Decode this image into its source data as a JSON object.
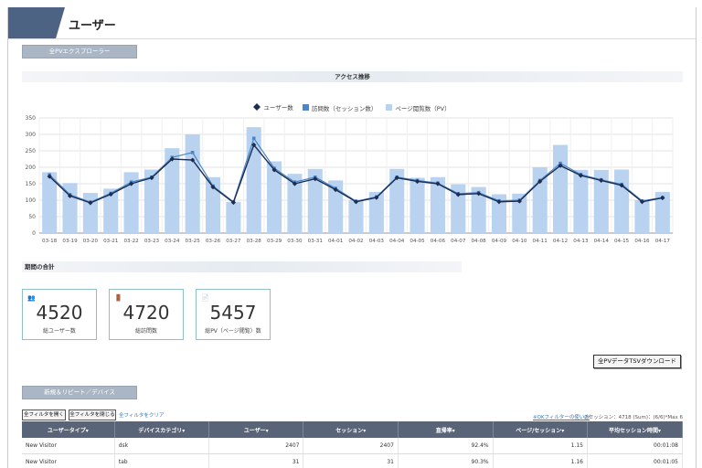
{
  "header": {
    "title": "ユーザー"
  },
  "explorer_label": "全PVエクスプローラー",
  "chart_title": "アクセス推移",
  "chart_data": {
    "type": "bar",
    "categories": [
      "03-18",
      "03-19",
      "03-20",
      "03-21",
      "03-22",
      "03-23",
      "03-24",
      "03-25",
      "03-26",
      "03-27",
      "03-28",
      "03-29",
      "03-30",
      "03-31",
      "04-01",
      "04-02",
      "04-03",
      "04-04",
      "04-05",
      "04-06",
      "04-07",
      "04-08",
      "04-09",
      "04-10",
      "04-11",
      "04-12",
      "04-13",
      "04-14",
      "04-15",
      "04-16",
      "04-17"
    ],
    "ylim": [
      0,
      350
    ],
    "yticks": [
      0,
      50,
      100,
      150,
      200,
      250,
      300,
      350
    ],
    "grid": true,
    "legend_position": "top-center",
    "series": [
      {
        "name": "ユーザー数",
        "type": "line",
        "color": "#1d2d50",
        "values": [
          172,
          113,
          92,
          118,
          150,
          168,
          225,
          222,
          140,
          93,
          268,
          192,
          150,
          165,
          132,
          95,
          108,
          168,
          157,
          150,
          117,
          120,
          95,
          97,
          157,
          205,
          175,
          160,
          145,
          95,
          107
        ]
      },
      {
        "name": "訪問数（セッション数）",
        "type": "line",
        "color": "#4a86c8",
        "values": [
          177,
          117,
          94,
          121,
          155,
          170,
          230,
          245,
          143,
          95,
          288,
          197,
          155,
          170,
          136,
          97,
          110,
          170,
          160,
          152,
          120,
          123,
          98,
          100,
          160,
          212,
          178,
          162,
          148,
          98,
          108
        ]
      },
      {
        "name": "ページ閲覧数（PV）",
        "type": "bar",
        "color": "#b8d2f0",
        "values": [
          185,
          152,
          122,
          135,
          185,
          193,
          258,
          300,
          170,
          95,
          322,
          218,
          180,
          195,
          160,
          100,
          125,
          195,
          168,
          170,
          148,
          140,
          118,
          120,
          200,
          268,
          192,
          192,
          193,
          100,
          125
        ]
      }
    ]
  },
  "totals_label": "期間の合計",
  "cards": [
    {
      "icon": "user-icon",
      "glyph": "👥",
      "value": "4520",
      "label": "総ユーザー数"
    },
    {
      "icon": "visit-icon",
      "glyph": "🚪",
      "value": "4720",
      "label": "総訪問数"
    },
    {
      "icon": "pages-icon",
      "glyph": "📄",
      "value": "5457",
      "label": "総PV（ページ閲覧）数"
    }
  ],
  "download_label": "全PVデータTSVダウンロード",
  "device_label": "新規＆リピート／デバイス",
  "filter": {
    "open_all": "全フィルタを開く",
    "close_all": "全フィルタを閉じる",
    "clear_all": "全フィルタをクリア",
    "help": "※OKフィルターの使い方",
    "session_note": "◎セッション：4718 (Sum)：(6/6)*Max 6"
  },
  "table": {
    "columns": [
      "ユーザータイプ▾",
      "デバイスカテゴリ▾",
      "ユーザー▾",
      "セッション▾",
      "直帰率▾",
      "ページ/セッション▾",
      "平均セッション時間▾"
    ],
    "rows": [
      [
        "New Visitor",
        "dsk",
        "2407",
        "2407",
        "92.4%",
        "1.15",
        "00:01:08"
      ],
      [
        "New Visitor",
        "tab",
        "31",
        "31",
        "90.3%",
        "1.16",
        "00:01:05"
      ]
    ]
  }
}
